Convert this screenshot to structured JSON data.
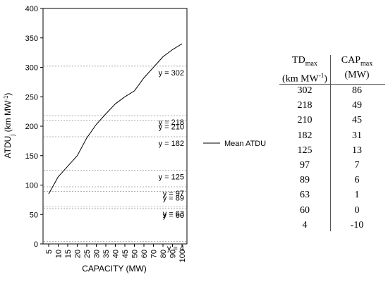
{
  "chart_data": {
    "type": "line",
    "ylabel": "ATDUj (km MW-1)",
    "ylabel_parts": {
      "base": "ATDU",
      "sub": "j",
      "unit": " (km MW",
      "sup": "-1",
      "close": ")"
    },
    "xlabel": "CAPACITY (MW)",
    "ylim": [
      0,
      400
    ],
    "yticks": [
      0,
      50,
      100,
      150,
      200,
      250,
      300,
      350,
      400
    ],
    "x": [
      "5",
      "10",
      "15",
      "20",
      "25",
      "30",
      "35",
      "40",
      "45",
      "50",
      "60",
      "70",
      "80",
      "90",
      "100"
    ],
    "series": [
      {
        "name": "Mean ATDU",
        "values": [
          85,
          114,
          132,
          150,
          180,
          203,
          221,
          238,
          250,
          260,
          282,
          300,
          318,
          330,
          340
        ]
      }
    ],
    "reference_lines": [
      {
        "label": "y = 302",
        "value": 302
      },
      {
        "label": "y = 218",
        "value": 218
      },
      {
        "label": "y = 210",
        "value": 210
      },
      {
        "label": "y = 182",
        "value": 182
      },
      {
        "label": "y = 125",
        "value": 125
      },
      {
        "label": "y = 89",
        "value": 89
      },
      {
        "label": "y = 97",
        "value": 97
      },
      {
        "label": "y = 63",
        "value": 63
      },
      {
        "label": "y = 60",
        "value": 60
      },
      {
        "label": "y = 4",
        "value": 4
      }
    ],
    "legend": {
      "position": "right",
      "entry": "Mean ATDU"
    },
    "grid": false,
    "table": {
      "headers": [
        {
          "base": "TD",
          "sub": "max",
          "line2_pre": "(km MW",
          "line2_sup": "-1",
          "line2_post": ")"
        },
        {
          "base": "CAP",
          "sub": "max",
          "line2_pre": "(MW)",
          "line2_sup": "",
          "line2_post": ""
        }
      ],
      "rows": [
        [
          "302",
          "86"
        ],
        [
          "218",
          "49"
        ],
        [
          "210",
          "45"
        ],
        [
          "182",
          "31"
        ],
        [
          "125",
          "13"
        ],
        [
          "97",
          "7"
        ],
        [
          "89",
          "6"
        ],
        [
          "63",
          "1"
        ],
        [
          "60",
          "0"
        ],
        [
          "4",
          "-10"
        ]
      ]
    }
  }
}
